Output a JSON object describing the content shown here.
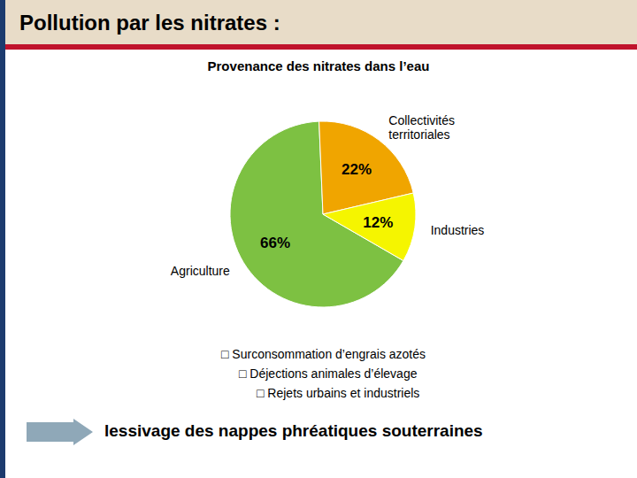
{
  "chart_data": {
    "type": "pie",
    "title": "Pollution par les nitrates :",
    "subtitle": "Provenance des nitrates dans l’eau",
    "categories": [
      "Agriculture",
      "Collectivités\nterritoriales",
      "Industries"
    ],
    "values": [
      66,
      22,
      12
    ],
    "value_labels": [
      "66%",
      "22%",
      "12%"
    ],
    "colors": [
      "#7dc142",
      "#f0a500",
      "#f5f500"
    ],
    "data_labels": true,
    "annotations": [
      "□ Surconsommation d’engrais azotés",
      "□ Déjections animales d’élevage",
      "□ Rejets urbains et industriels",
      "lessivage des nappes phréatiques souterraines"
    ]
  }
}
